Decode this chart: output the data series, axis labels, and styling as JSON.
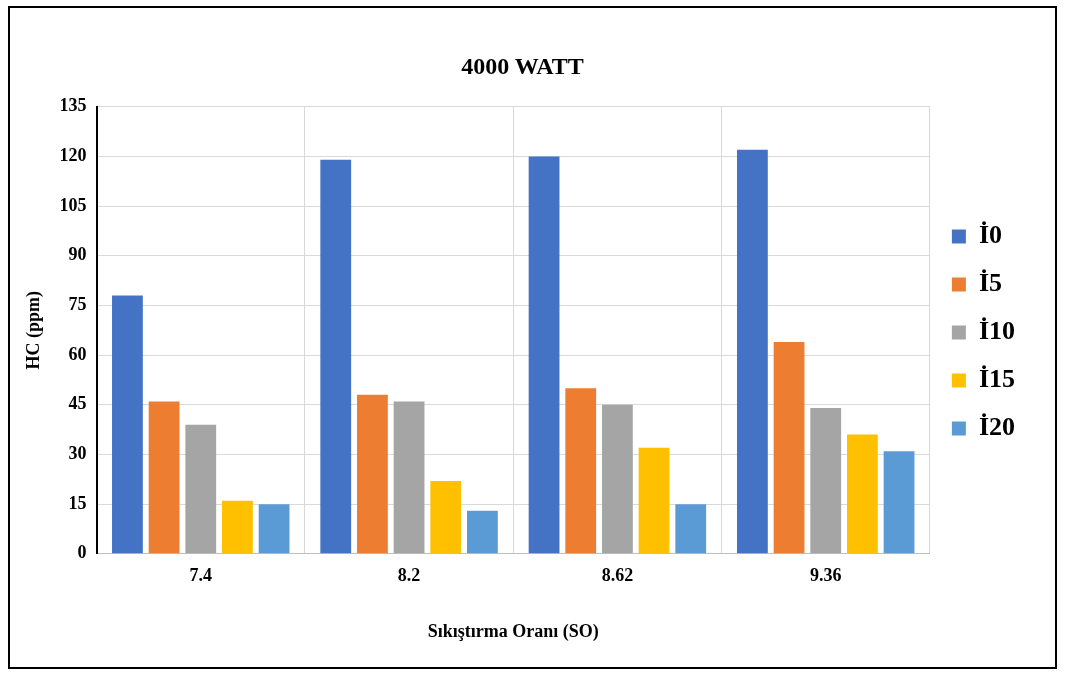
{
  "chart_data": {
    "type": "bar",
    "title": "4000 WATT",
    "xlabel": "Sıkıştırma Oranı (SO)",
    "ylabel": "HC (ppm)",
    "categories": [
      "7.4",
      "8.2",
      "8.62",
      "9.36"
    ],
    "series": [
      {
        "name": "İ0",
        "color": "#4472c4",
        "values": [
          78,
          119,
          120,
          122
        ]
      },
      {
        "name": "İ5",
        "color": "#ed7d31",
        "values": [
          46,
          48,
          50,
          64
        ]
      },
      {
        "name": "İ10",
        "color": "#a5a5a5",
        "values": [
          39,
          46,
          45,
          44
        ]
      },
      {
        "name": "İ15",
        "color": "#ffc000",
        "values": [
          16,
          22,
          32,
          36
        ]
      },
      {
        "name": "İ20",
        "color": "#5b9bd5",
        "values": [
          15,
          13,
          15,
          31
        ]
      }
    ],
    "ylim": [
      0,
      135
    ],
    "yticks": [
      0,
      15,
      30,
      45,
      60,
      75,
      90,
      105,
      120,
      135
    ],
    "grid": true,
    "legend": "right"
  }
}
